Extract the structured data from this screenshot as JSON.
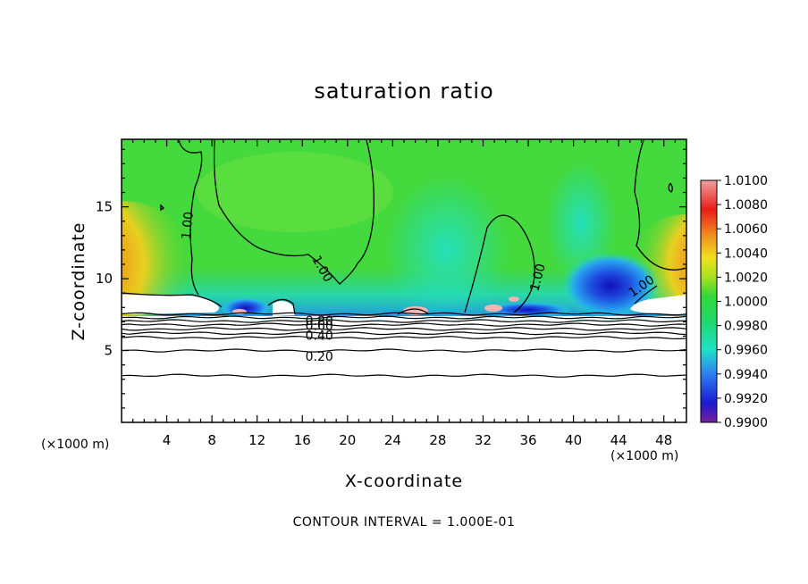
{
  "chart_data": {
    "type": "heatmap",
    "title": "saturation ratio",
    "xlabel": "X-coordinate",
    "ylabel": "Z-coordinate",
    "x_unit_label": "(×1000 m)",
    "x_unit_label_right": "(×1000 m)",
    "footer": "CONTOUR INTERVAL = 1.000E-01",
    "xlim": [
      0,
      50
    ],
    "ylim": [
      0,
      19.7
    ],
    "x_ticks": [
      4,
      8,
      12,
      16,
      20,
      24,
      28,
      32,
      36,
      40,
      44,
      48
    ],
    "y_ticks": [
      5,
      10,
      15
    ],
    "colorbar": {
      "labels": [
        "1.0100",
        "1.0080",
        "1.0060",
        "1.0040",
        "1.0020",
        "1.0000",
        "0.9980",
        "0.9960",
        "0.9940",
        "0.9920",
        "0.9900"
      ],
      "range": [
        0.99,
        1.01
      ],
      "colors": [
        "#7a1f9e",
        "#1a1ad0",
        "#2f7ff0",
        "#20e0c8",
        "#22d86a",
        "#30d838",
        "#a8e020",
        "#f0e020",
        "#f09020",
        "#e81e18",
        "#f0a0a0"
      ]
    },
    "field": {
      "background_value": 0.9985,
      "cloud_top_z": 7.6,
      "features": [
        {
          "name": "supersaturated-left",
          "x": 0.8,
          "z": 11.2,
          "value": 1.0085
        },
        {
          "name": "supersaturated-right",
          "x": 49.5,
          "z": 11.0,
          "value": 1.008
        },
        {
          "name": "subsaturated-right",
          "x": 43.0,
          "z": 9.8,
          "value": 0.9925
        },
        {
          "name": "subsaturated-left",
          "x": 10.8,
          "z": 8.2,
          "value": 0.9935
        },
        {
          "name": "moist-plume-center",
          "x": 30.0,
          "z": 11.0,
          "value": 0.9962
        }
      ]
    },
    "contour_labels": [
      {
        "text": "1.00",
        "x": 5.8,
        "z": 13.7,
        "angle": -84
      },
      {
        "text": "1.00",
        "x": 17.8,
        "z": 10.7,
        "angle": 60
      },
      {
        "text": "1.00",
        "x": 36.8,
        "z": 10.1,
        "angle": -75
      },
      {
        "text": "1.00",
        "x": 46.0,
        "z": 9.5,
        "angle": -35
      },
      {
        "text": "0.80",
        "x": 17.5,
        "z": 7.1,
        "angle": 0
      },
      {
        "text": "0.60",
        "x": 17.5,
        "z": 6.75,
        "angle": 0
      },
      {
        "text": "0.40",
        "x": 17.5,
        "z": 6.05,
        "angle": 0
      },
      {
        "text": "0.20",
        "x": 17.5,
        "z": 4.6,
        "angle": 0
      }
    ],
    "horizontal_contours": [
      7.55,
      7.3,
      7.05,
      6.8,
      6.5,
      6.2,
      5.9,
      5.0,
      3.25
    ]
  }
}
